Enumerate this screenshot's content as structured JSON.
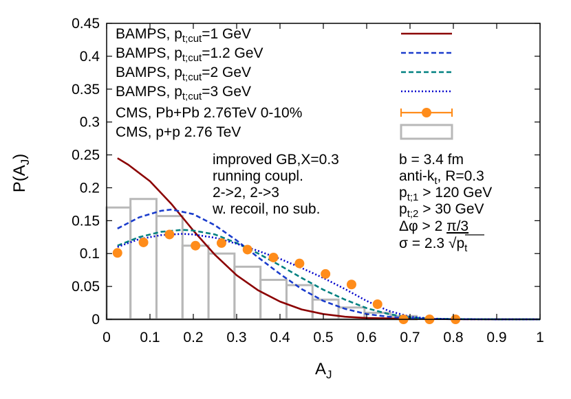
{
  "chart_data": {
    "type": "line",
    "xlabel": "A",
    "xlabel_sub": "J",
    "ylabel": "P(A",
    "ylabel_sub": "J",
    "ylabel_close": ")",
    "xlim": [
      0,
      1
    ],
    "ylim": [
      0,
      0.45
    ],
    "xticks": [
      0,
      0.1,
      0.2,
      0.3,
      0.4,
      0.5,
      0.6,
      0.7,
      0.8,
      0.9,
      1
    ],
    "xtick_labels": [
      "0",
      "0.1",
      "0.2",
      "0.3",
      "0.4",
      "0.5",
      "0.6",
      "0.7",
      "0.8",
      "0.9",
      "1"
    ],
    "yticks": [
      0,
      0.05,
      0.1,
      0.15,
      0.2,
      0.25,
      0.3,
      0.35,
      0.4,
      0.45
    ],
    "ytick_labels": [
      "0",
      "0.05",
      "0.1",
      "0.15",
      "0.2",
      "0.25",
      "0.3",
      "0.35",
      "0.4",
      "0.45"
    ],
    "grid": false,
    "legend_position": "top-left",
    "series": [
      {
        "name": "BAMPS, p",
        "name_sub": "t;cut",
        "name_rest": "=1 GeV",
        "type": "line",
        "style": "solid",
        "color": "#8b0000",
        "x": [
          0.025,
          0.05,
          0.1,
          0.15,
          0.2,
          0.25,
          0.3,
          0.35,
          0.4,
          0.45,
          0.5,
          0.55,
          0.6,
          0.7,
          0.8,
          0.9,
          1.0
        ],
        "y": [
          0.245,
          0.235,
          0.21,
          0.175,
          0.135,
          0.098,
          0.067,
          0.044,
          0.027,
          0.015,
          0.008,
          0.004,
          0.002,
          0.0008,
          0.0002,
          0.0001,
          0.0
        ]
      },
      {
        "name": "BAMPS, p",
        "name_sub": "t;cut",
        "name_rest": "=1.2 GeV",
        "type": "line",
        "style": "dashed",
        "color": "#1a3ccc",
        "x": [
          0.025,
          0.075,
          0.125,
          0.15,
          0.2,
          0.25,
          0.3,
          0.35,
          0.4,
          0.45,
          0.5,
          0.55,
          0.6,
          0.65,
          0.7,
          0.75,
          0.8,
          0.9,
          1.0
        ],
        "y": [
          0.138,
          0.155,
          0.165,
          0.167,
          0.16,
          0.143,
          0.12,
          0.094,
          0.069,
          0.046,
          0.028,
          0.016,
          0.008,
          0.004,
          0.0015,
          0.0006,
          0.0002,
          0.0001,
          0.0
        ]
      },
      {
        "name": "BAMPS, p",
        "name_sub": "t;cut",
        "name_rest": "=2 GeV",
        "type": "line",
        "style": "dashed",
        "color": "#008080",
        "x": [
          0.025,
          0.075,
          0.125,
          0.175,
          0.2,
          0.25,
          0.3,
          0.35,
          0.4,
          0.45,
          0.5,
          0.55,
          0.6,
          0.65,
          0.7,
          0.75,
          0.8,
          0.9,
          1.0
        ],
        "y": [
          0.112,
          0.125,
          0.133,
          0.136,
          0.135,
          0.129,
          0.116,
          0.1,
          0.082,
          0.063,
          0.045,
          0.03,
          0.017,
          0.008,
          0.003,
          0.001,
          0.0004,
          0.0001,
          0.0
        ]
      },
      {
        "name": "BAMPS, p",
        "name_sub": "t;cut",
        "name_rest": "=3 GeV",
        "type": "line",
        "style": "dotted",
        "color": "#0000cc",
        "x": [
          0.025,
          0.075,
          0.125,
          0.175,
          0.2,
          0.25,
          0.3,
          0.35,
          0.4,
          0.45,
          0.5,
          0.55,
          0.6,
          0.65,
          0.7,
          0.75,
          0.8,
          0.9,
          1.0
        ],
        "y": [
          0.11,
          0.122,
          0.128,
          0.13,
          0.129,
          0.124,
          0.115,
          0.104,
          0.092,
          0.078,
          0.063,
          0.046,
          0.028,
          0.013,
          0.004,
          0.001,
          0.0003,
          0.0001,
          0.0
        ]
      },
      {
        "name": "CMS, Pb+Pb 2.76TeV 0-10%",
        "type": "points",
        "color": "#ff8c1a",
        "x": [
          0.025,
          0.085,
          0.145,
          0.205,
          0.265,
          0.325,
          0.385,
          0.445,
          0.505,
          0.565,
          0.625,
          0.685,
          0.745,
          0.805
        ],
        "y": [
          0.101,
          0.117,
          0.129,
          0.112,
          0.116,
          0.106,
          0.094,
          0.085,
          0.069,
          0.053,
          0.023,
          0.0,
          0.0,
          0.0
        ]
      },
      {
        "name": "CMS, p+p 2.76 TeV",
        "type": "histogram",
        "color": "#b8b8b8",
        "bin_edges": [
          0.0,
          0.055,
          0.115,
          0.175,
          0.235,
          0.295,
          0.355,
          0.415,
          0.475,
          0.535,
          0.595,
          0.655,
          0.715,
          0.775,
          0.835
        ],
        "values": [
          0.17,
          0.183,
          0.157,
          0.112,
          0.1,
          0.08,
          0.06,
          0.052,
          0.03,
          0.018,
          0.01,
          0.005,
          0.0,
          0.0
        ]
      }
    ],
    "annotations_left": [
      "improved GB,X=0.3",
      "running coupl.",
      "2->2, 2->3",
      "w. recoil, no sub."
    ],
    "annotations_right": {
      "l1": "b = 3.4 fm",
      "l2_main": "anti-k",
      "l2_sub": "t",
      "l2_rest": ", R=0.3",
      "l3_main": "p",
      "l3_sub": "t;1",
      "l3_rest": " > 120 GeV",
      "l4_main": "p",
      "l4_sub": "t;2",
      "l4_rest": " > 30 GeV",
      "l5_main": "Δφ > 2 ",
      "l5_rest": "π/3",
      "l6_main": "σ = 2.3 √p",
      "l6_sub": "t"
    }
  }
}
